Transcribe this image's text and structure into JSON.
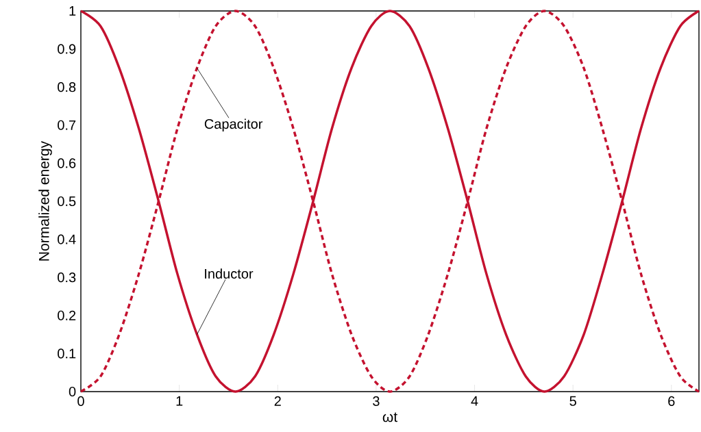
{
  "chart_data": {
    "type": "line",
    "xlabel": "ωt",
    "ylabel": "Normalized energy",
    "x": [
      0,
      0.2,
      0.39,
      0.59,
      0.79,
      0.98,
      1.18,
      1.37,
      1.57,
      1.77,
      1.96,
      2.16,
      2.36,
      2.55,
      2.75,
      2.95,
      3.14,
      3.34,
      3.53,
      3.73,
      3.93,
      4.12,
      4.32,
      4.52,
      4.71,
      4.91,
      5.11,
      5.3,
      5.5,
      5.69,
      5.89,
      6.09,
      6.28
    ],
    "series": [
      {
        "name": "Capacitor",
        "color": "#c4122f",
        "line_style": "dashed",
        "values": [
          0,
          0.04,
          0.15,
          0.31,
          0.5,
          0.69,
          0.85,
          0.96,
          1,
          0.96,
          0.85,
          0.69,
          0.5,
          0.31,
          0.15,
          0.04,
          0,
          0.04,
          0.15,
          0.31,
          0.5,
          0.69,
          0.85,
          0.96,
          1,
          0.96,
          0.85,
          0.69,
          0.5,
          0.31,
          0.15,
          0.04,
          0
        ]
      },
      {
        "name": "Inductor",
        "color": "#c4122f",
        "line_style": "solid",
        "values": [
          1,
          0.96,
          0.85,
          0.69,
          0.5,
          0.31,
          0.15,
          0.04,
          0,
          0.04,
          0.15,
          0.31,
          0.5,
          0.69,
          0.85,
          0.96,
          1,
          0.96,
          0.85,
          0.69,
          0.5,
          0.31,
          0.15,
          0.04,
          0,
          0.04,
          0.15,
          0.31,
          0.5,
          0.69,
          0.85,
          0.96,
          1
        ]
      }
    ],
    "xlim": [
      0,
      6.28
    ],
    "ylim": [
      0,
      1
    ],
    "xticks": [
      0,
      1,
      2,
      3,
      4,
      5,
      6
    ],
    "yticks": [
      0,
      0.1,
      0.2,
      0.3,
      0.4,
      0.5,
      0.6,
      0.7,
      0.8,
      0.9,
      1
    ],
    "grid": false,
    "legend": false,
    "marker": "none"
  }
}
